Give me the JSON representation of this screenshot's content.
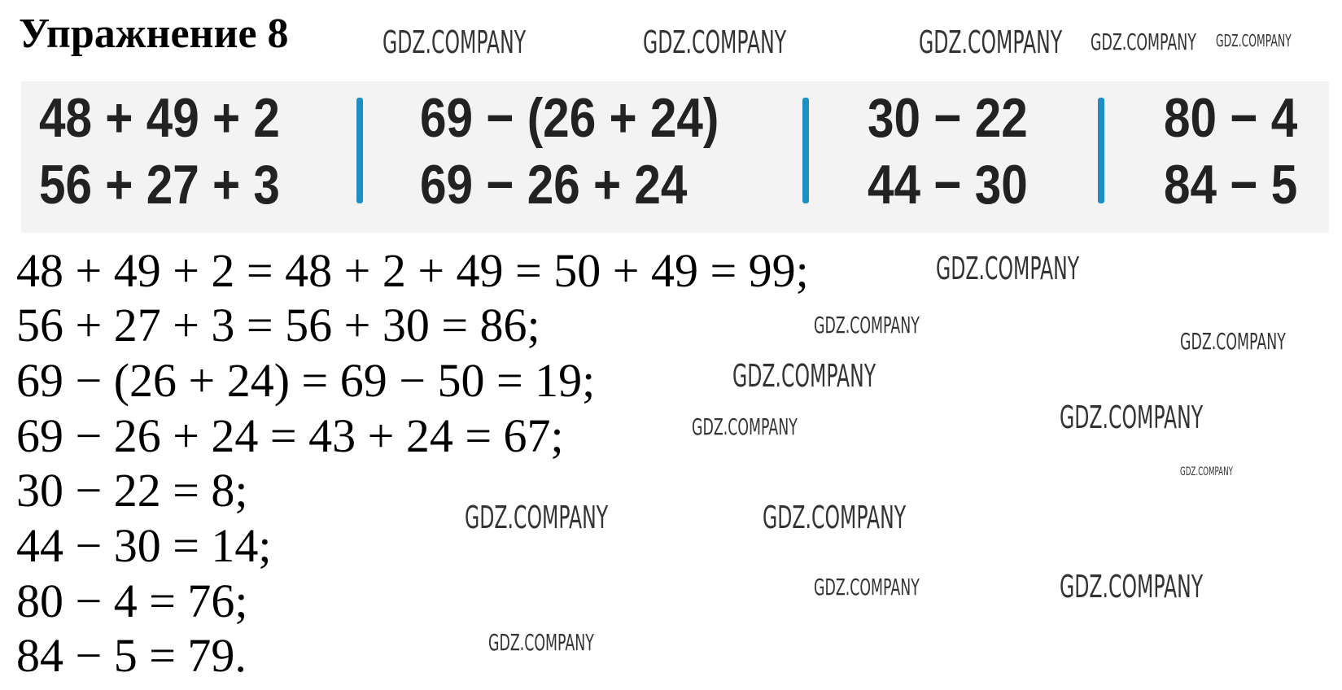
{
  "title": "Упражнение 8",
  "exercise": {
    "columns": [
      {
        "rows": [
          "48 + 49 + 2",
          "56 + 27 + 3"
        ]
      },
      {
        "rows": [
          "69 − (26 + 24)",
          "69 − 26 + 24"
        ]
      },
      {
        "rows": [
          "30 − 22",
          "44 − 30"
        ]
      },
      {
        "rows": [
          "80 − 4",
          "84 − 5"
        ]
      }
    ],
    "divider_color": "#1e8fc4"
  },
  "answers": [
    "48 + 49 + 2 = 48 + 2 + 49 = 50 + 49 = 99;",
    "56 + 27 + 3 = 56 + 30 = 86;",
    "69 − (26 + 24) = 69 − 50 = 19;",
    "69 − 26 + 24 = 43 + 24 = 67;",
    "30 − 22 = 8;",
    "44 − 30 = 14;",
    "80 − 4 = 76;",
    "84 − 5 = 79."
  ],
  "watermark": "GDZ.COMPANY"
}
